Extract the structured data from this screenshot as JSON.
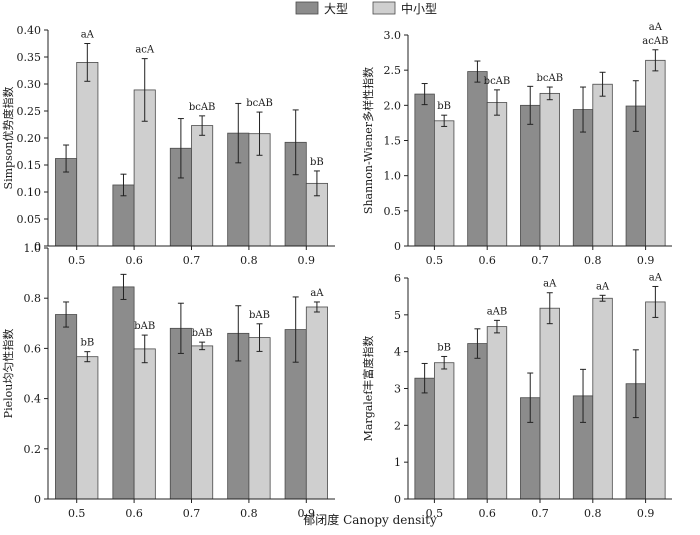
{
  "colors": {
    "large": "#8c8c8c",
    "small": "#cfcfcf",
    "bar_stroke": "#4a4a4a",
    "axis": "#222222",
    "error_bar": "#222222"
  },
  "legend": {
    "position": "top-center",
    "items": [
      {
        "label": "大型",
        "color_key": "large"
      },
      {
        "label": "中小型",
        "color_key": "small"
      }
    ]
  },
  "x_axis_title": "郁闭度 Canopy density",
  "chart_data": [
    {
      "type": "bar",
      "ylabel": "Simpson优势度指数",
      "categories": [
        "0.5",
        "0.6",
        "0.7",
        "0.8",
        "0.9"
      ],
      "ylim": [
        0,
        0.4
      ],
      "yticks": [
        0,
        0.05,
        0.1,
        0.15,
        0.2,
        0.25,
        0.3,
        0.35,
        0.4
      ],
      "ytick_labels": [
        "0",
        "0.05",
        "0.10",
        "0.15",
        "0.20",
        "0.25",
        "0.30",
        "0.35",
        "0.40"
      ],
      "series": [
        {
          "name": "大型",
          "values": [
            0.162,
            0.113,
            0.181,
            0.209,
            0.192
          ],
          "errors": [
            0.025,
            0.02,
            0.055,
            0.055,
            0.06
          ]
        },
        {
          "name": "中小型",
          "values": [
            0.34,
            0.289,
            0.223,
            0.208,
            0.116
          ],
          "errors": [
            0.035,
            0.058,
            0.018,
            0.04,
            0.023
          ]
        }
      ],
      "group_labels": [
        "aA",
        "acA",
        "bcAB",
        "bcAB",
        "bB"
      ]
    },
    {
      "type": "bar",
      "ylabel": "Shannon-Wiener多样性指数",
      "categories": [
        "0.5",
        "0.6",
        "0.7",
        "0.8",
        "0.9"
      ],
      "ylim": [
        0,
        3.0
      ],
      "yticks": [
        0,
        0.5,
        1.0,
        1.5,
        2.0,
        2.5,
        3.0
      ],
      "ytick_labels": [
        "0",
        "0.5",
        "1.0",
        "1.5",
        "2.0",
        "2.5",
        "3.0"
      ],
      "series": [
        {
          "name": "大型",
          "values": [
            2.16,
            2.48,
            2.0,
            1.94,
            1.99
          ],
          "errors": [
            0.15,
            0.15,
            0.27,
            0.32,
            0.36
          ]
        },
        {
          "name": "中小型",
          "values": [
            1.78,
            2.04,
            2.17,
            2.3,
            2.64
          ],
          "errors": [
            0.08,
            0.18,
            0.09,
            0.17,
            0.15
          ]
        }
      ],
      "group_labels": [
        "bB",
        "bcAB",
        "bcAB",
        "",
        "acAB"
      ],
      "top_labels": [
        "",
        "",
        "",
        "",
        "aA"
      ]
    },
    {
      "type": "bar",
      "ylabel": "Pielou均匀性指数",
      "categories": [
        "0.5",
        "0.6",
        "0.7",
        "0.8",
        "0.9"
      ],
      "ylim": [
        0,
        1.0
      ],
      "yticks": [
        0,
        0.2,
        0.4,
        0.6,
        0.8,
        1.0
      ],
      "ytick_labels": [
        "0",
        "0.2",
        "0.4",
        "0.6",
        "0.8",
        "1.0"
      ],
      "series": [
        {
          "name": "大型",
          "values": [
            0.735,
            0.845,
            0.68,
            0.66,
            0.675
          ],
          "errors": [
            0.05,
            0.05,
            0.1,
            0.11,
            0.13
          ]
        },
        {
          "name": "中小型",
          "values": [
            0.567,
            0.598,
            0.61,
            0.643,
            0.765
          ],
          "errors": [
            0.02,
            0.055,
            0.015,
            0.055,
            0.02
          ]
        }
      ],
      "group_labels": [
        "bB",
        "bAB",
        "bAB",
        "bAB",
        "aA"
      ]
    },
    {
      "type": "bar",
      "ylabel": "Margalef丰富度指数",
      "categories": [
        "0.5",
        "0.6",
        "0.7",
        "0.8",
        "0.9"
      ],
      "ylim": [
        0,
        6
      ],
      "yticks": [
        0,
        1,
        2,
        3,
        4,
        5,
        6
      ],
      "ytick_labels": [
        "0",
        "1",
        "2",
        "3",
        "4",
        "5",
        "6"
      ],
      "series": [
        {
          "name": "大型",
          "values": [
            3.28,
            4.22,
            2.75,
            2.8,
            3.13
          ],
          "errors": [
            0.4,
            0.4,
            0.67,
            0.72,
            0.92
          ]
        },
        {
          "name": "中小型",
          "values": [
            3.7,
            4.68,
            5.18,
            5.45,
            5.35
          ],
          "errors": [
            0.17,
            0.17,
            0.42,
            0.08,
            0.42
          ]
        }
      ],
      "group_labels": [
        "bB",
        "aAB",
        "aA",
        "aA",
        "aA"
      ]
    }
  ]
}
